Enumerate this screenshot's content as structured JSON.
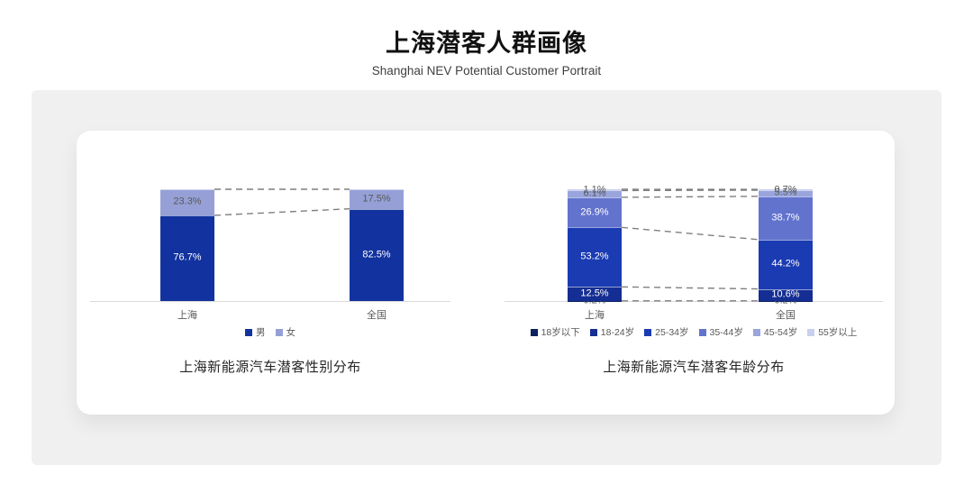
{
  "page": {
    "title": "上海潜客人群画像",
    "subtitle": "Shanghai NEV Potential Customer Portrait"
  },
  "chart_data": [
    {
      "type": "bar",
      "stacked": true,
      "title": "上海新能源汽车潜客性别分布",
      "categories": [
        "上海",
        "全国"
      ],
      "series": [
        {
          "name": "男",
          "values": [
            76.7,
            82.5
          ],
          "color": "#12339f",
          "label_color": "#ffffff"
        },
        {
          "name": "女",
          "values": [
            23.3,
            17.5
          ],
          "color": "#96a0d7",
          "label_color": "#595959"
        }
      ],
      "value_suffix": "%",
      "ylim": [
        0,
        100
      ],
      "legend_position": "bottom",
      "grid": false,
      "connector_lines": true
    },
    {
      "type": "bar",
      "stacked": true,
      "title": "上海新能源汽车潜客年龄分布",
      "categories": [
        "上海",
        "全国"
      ],
      "series": [
        {
          "name": "18岁以下",
          "values": [
            0.2,
            0.2
          ],
          "color": "#0b2161",
          "label_color": "#595959"
        },
        {
          "name": "18-24岁",
          "values": [
            12.5,
            10.6
          ],
          "color": "#142e93",
          "label_color": "#ffffff"
        },
        {
          "name": "25-34岁",
          "values": [
            53.2,
            44.2
          ],
          "color": "#1b3bb3",
          "label_color": "#ffffff"
        },
        {
          "name": "35-44岁",
          "values": [
            26.9,
            38.7
          ],
          "color": "#6273ce",
          "label_color": "#ffffff"
        },
        {
          "name": "45-54岁",
          "values": [
            6.1,
            5.5
          ],
          "color": "#99a5dc",
          "label_color": "#595959"
        },
        {
          "name": "55岁以上",
          "values": [
            1.1,
            0.7
          ],
          "color": "#c9cfee",
          "label_color": "#595959"
        }
      ],
      "value_suffix": "%",
      "ylim": [
        0,
        100
      ],
      "legend_position": "bottom",
      "grid": false,
      "connector_lines": true
    }
  ],
  "style": {
    "axis_color": "#d9d9d9",
    "connector_color": "#7f7f7f",
    "label_gray": "#595959",
    "panel_bg": "#f0f0f1",
    "card_bg": "#ffffff"
  }
}
